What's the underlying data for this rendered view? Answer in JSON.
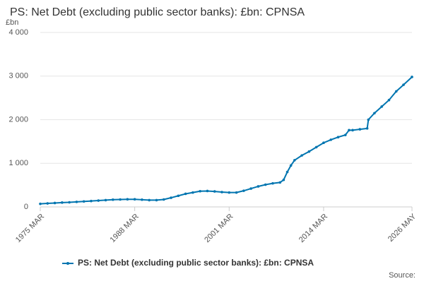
{
  "chart_data": {
    "type": "line",
    "title": "PS: Net Debt (excluding public sector banks): £bn: CPNSA",
    "y_unit": "£bn",
    "source": "Source:",
    "x": [
      "1975 MAR",
      "1976 MAR",
      "1977 MAR",
      "1978 MAR",
      "1979 MAR",
      "1980 MAR",
      "1981 MAR",
      "1982 MAR",
      "1983 MAR",
      "1984 MAR",
      "1985 MAR",
      "1986 MAR",
      "1987 MAR",
      "1988 MAR",
      "1989 MAR",
      "1990 MAR",
      "1991 MAR",
      "1992 MAR",
      "1993 MAR",
      "1994 MAR",
      "1995 MAR",
      "1996 MAR",
      "1997 MAR",
      "1998 MAR",
      "1999 MAR",
      "2000 MAR",
      "2001 MAR",
      "2002 MAR",
      "2003 MAR",
      "2004 MAR",
      "2005 MAR",
      "2006 MAR",
      "2007 MAR",
      "2008 MAR",
      "2008 SEP",
      "2009 MAR",
      "2009 SEP",
      "2010 MAR",
      "2011 MAR",
      "2012 MAR",
      "2013 MAR",
      "2014 MAR",
      "2015 MAR",
      "2016 MAR",
      "2017 MAR",
      "2017 SEP",
      "2018 MAR",
      "2019 MAR",
      "2020 MAR",
      "2020 MAY",
      "2021 MAR",
      "2022 MAR",
      "2023 MAR",
      "2024 MAR",
      "2025 MAR",
      "2026 MAY"
    ],
    "series": [
      {
        "name": "PS: Net Debt (excluding public sector banks): £bn: CPNSA",
        "color": "#0075b0",
        "values": [
          70,
          80,
          90,
          100,
          105,
          115,
          125,
          135,
          145,
          155,
          165,
          170,
          175,
          175,
          165,
          155,
          155,
          170,
          210,
          255,
          300,
          330,
          360,
          365,
          355,
          340,
          330,
          330,
          370,
          420,
          470,
          510,
          540,
          560,
          620,
          800,
          950,
          1070,
          1180,
          1270,
          1370,
          1470,
          1540,
          1600,
          1650,
          1760,
          1760,
          1780,
          1800,
          2000,
          2150,
          2300,
          2450,
          2650,
          2800,
          2980
        ]
      }
    ],
    "xlim": [
      "1975 MAR",
      "2026 MAY"
    ],
    "xticks": [
      "1975 MAR",
      "1988 MAR",
      "2001 MAR",
      "2014 MAR",
      "2026 MAY"
    ],
    "ylim": [
      0,
      4000
    ],
    "yticks": [
      0,
      {
        "value": 1000,
        "label": "1 000"
      },
      {
        "value": 2000,
        "label": "2 000"
      },
      {
        "value": 3000,
        "label": "3 000"
      },
      {
        "value": 4000,
        "label": "4 000"
      }
    ],
    "grid": true
  }
}
